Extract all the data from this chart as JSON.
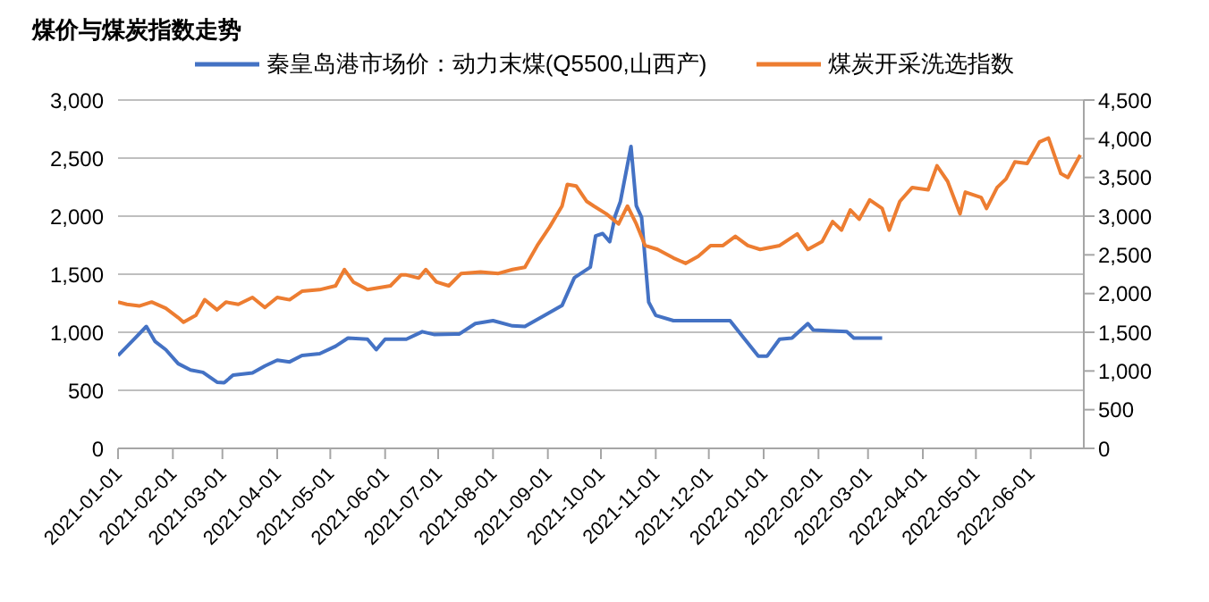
{
  "chart_data": {
    "type": "line",
    "title": "煤价与煤炭指数走势",
    "xlim": [
      "2021-01-01",
      "2022-07-01"
    ],
    "xticks": [
      "2021-01-01",
      "2021-02-01",
      "2021-03-01",
      "2021-04-01",
      "2021-05-01",
      "2021-06-01",
      "2021-07-01",
      "2021-08-01",
      "2021-09-01",
      "2021-10-01",
      "2021-11-01",
      "2021-12-01",
      "2022-01-01",
      "2022-02-01",
      "2022-03-01",
      "2022-04-01",
      "2022-05-01",
      "2022-06-01"
    ],
    "ylim": [
      0,
      3000
    ],
    "yticks": [
      0,
      500,
      {
        "value": 1000,
        "label": "1,000"
      },
      {
        "value": 1500,
        "label": "1,500"
      },
      {
        "value": 2000,
        "label": "2,000"
      },
      {
        "value": 2500,
        "label": "2,500"
      },
      {
        "value": 3000,
        "label": "3,000"
      }
    ],
    "y2lim": [
      0,
      4500
    ],
    "y2ticks": [
      0,
      500,
      {
        "value": 1000,
        "label": "1,000"
      },
      {
        "value": 1500,
        "label": "1,500"
      },
      {
        "value": 2000,
        "label": "2,000"
      },
      {
        "value": 2500,
        "label": "2,500"
      },
      {
        "value": 3000,
        "label": "3,000"
      },
      {
        "value": 3500,
        "label": "3,500"
      },
      {
        "value": 4000,
        "label": "4,000"
      },
      {
        "value": 4500,
        "label": "4,500"
      }
    ],
    "grid": "y",
    "legend": "top",
    "marker": "none",
    "line_style": "solid",
    "series": [
      {
        "name": "秦皇岛港市场价：动力末煤(Q5500,山西产)",
        "color": "#4472c4",
        "axis": "y",
        "x": [
          "2021-01-01",
          "2021-01-10",
          "2021-01-17",
          "2021-01-22",
          "2021-01-28",
          "2021-02-04",
          "2021-02-11",
          "2021-02-18",
          "2021-02-26",
          "2021-03-02",
          "2021-03-07",
          "2021-03-18",
          "2021-03-25",
          "2021-04-01",
          "2021-04-08",
          "2021-04-15",
          "2021-04-25",
          "2021-05-04",
          "2021-05-11",
          "2021-05-22",
          "2021-05-27",
          "2021-06-01",
          "2021-06-13",
          "2021-06-22",
          "2021-06-29",
          "2021-07-13",
          "2021-07-22",
          "2021-08-01",
          "2021-08-12",
          "2021-08-19",
          "2021-08-30",
          "2021-09-09",
          "2021-09-16",
          "2021-09-25",
          "2021-09-28",
          "2021-10-02",
          "2021-10-06",
          "2021-10-09",
          "2021-10-12",
          "2021-10-18",
          "2021-10-21",
          "2021-10-24",
          "2021-10-28",
          "2021-11-01",
          "2021-11-11",
          "2021-12-13",
          "2021-12-20",
          "2021-12-29",
          "2022-01-03",
          "2022-01-10",
          "2022-01-17",
          "2022-01-26",
          "2022-01-29",
          "2022-02-17",
          "2022-02-21",
          "2022-03-09"
        ],
        "values": [
          800,
          940,
          1050,
          920,
          850,
          730,
          675,
          655,
          570,
          565,
          630,
          650,
          710,
          760,
          745,
          800,
          815,
          880,
          950,
          940,
          850,
          940,
          940,
          1005,
          980,
          985,
          1075,
          1100,
          1055,
          1050,
          1145,
          1230,
          1470,
          1560,
          1830,
          1850,
          1780,
          2000,
          2125,
          2600,
          2090,
          1990,
          1260,
          1145,
          1100,
          1100,
          965,
          795,
          795,
          940,
          950,
          1075,
          1020,
          1005,
          950,
          950
        ]
      },
      {
        "name": "煤炭开采洗选指数",
        "color": "#ed7d31",
        "axis": "y2",
        "x": [
          "2021-01-01",
          "2021-01-06",
          "2021-01-13",
          "2021-01-20",
          "2021-01-28",
          "2021-02-04",
          "2021-02-07",
          "2021-02-14",
          "2021-02-19",
          "2021-02-26",
          "2021-03-03",
          "2021-03-10",
          "2021-03-18",
          "2021-03-25",
          "2021-04-01",
          "2021-04-08",
          "2021-04-15",
          "2021-04-25",
          "2021-05-04",
          "2021-05-09",
          "2021-05-14",
          "2021-05-22",
          "2021-06-04",
          "2021-06-10",
          "2021-06-13",
          "2021-06-20",
          "2021-06-24",
          "2021-06-30",
          "2021-07-07",
          "2021-07-14",
          "2021-07-25",
          "2021-08-04",
          "2021-08-12",
          "2021-08-19",
          "2021-08-26",
          "2021-09-02",
          "2021-09-09",
          "2021-09-12",
          "2021-09-17",
          "2021-09-23",
          "2021-09-27",
          "2021-10-04",
          "2021-10-11",
          "2021-10-16",
          "2021-10-21",
          "2021-10-26",
          "2021-11-02",
          "2021-11-11",
          "2021-11-18",
          "2021-11-25",
          "2021-12-02",
          "2021-12-09",
          "2021-12-16",
          "2021-12-23",
          "2021-12-30",
          "2022-01-10",
          "2022-01-20",
          "2022-01-26",
          "2022-02-03",
          "2022-02-09",
          "2022-02-14",
          "2022-02-19",
          "2022-02-24",
          "2022-03-02",
          "2022-03-09",
          "2022-03-13",
          "2022-03-19",
          "2022-03-26",
          "2022-04-04",
          "2022-04-09",
          "2022-04-15",
          "2022-04-22",
          "2022-04-25",
          "2022-05-04",
          "2022-05-07",
          "2022-05-13",
          "2022-05-18",
          "2022-05-23",
          "2022-05-30",
          "2022-06-06",
          "2022-06-11",
          "2022-06-18",
          "2022-06-22",
          "2022-06-29"
        ],
        "values": [
          1890,
          1860,
          1840,
          1890,
          1810,
          1690,
          1630,
          1720,
          1920,
          1790,
          1890,
          1860,
          1950,
          1820,
          1950,
          1920,
          2030,
          2050,
          2100,
          2310,
          2150,
          2050,
          2100,
          2240,
          2240,
          2200,
          2310,
          2150,
          2100,
          2260,
          2280,
          2260,
          2310,
          2340,
          2620,
          2860,
          3130,
          3410,
          3390,
          3190,
          3130,
          3030,
          2900,
          3130,
          2900,
          2620,
          2570,
          2460,
          2390,
          2480,
          2620,
          2620,
          2740,
          2620,
          2570,
          2620,
          2770,
          2570,
          2670,
          2930,
          2820,
          3080,
          2960,
          3210,
          3100,
          2820,
          3190,
          3370,
          3340,
          3650,
          3450,
          3030,
          3310,
          3240,
          3100,
          3370,
          3480,
          3700,
          3680,
          3960,
          4010,
          3550,
          3500,
          3790
        ]
      }
    ]
  }
}
